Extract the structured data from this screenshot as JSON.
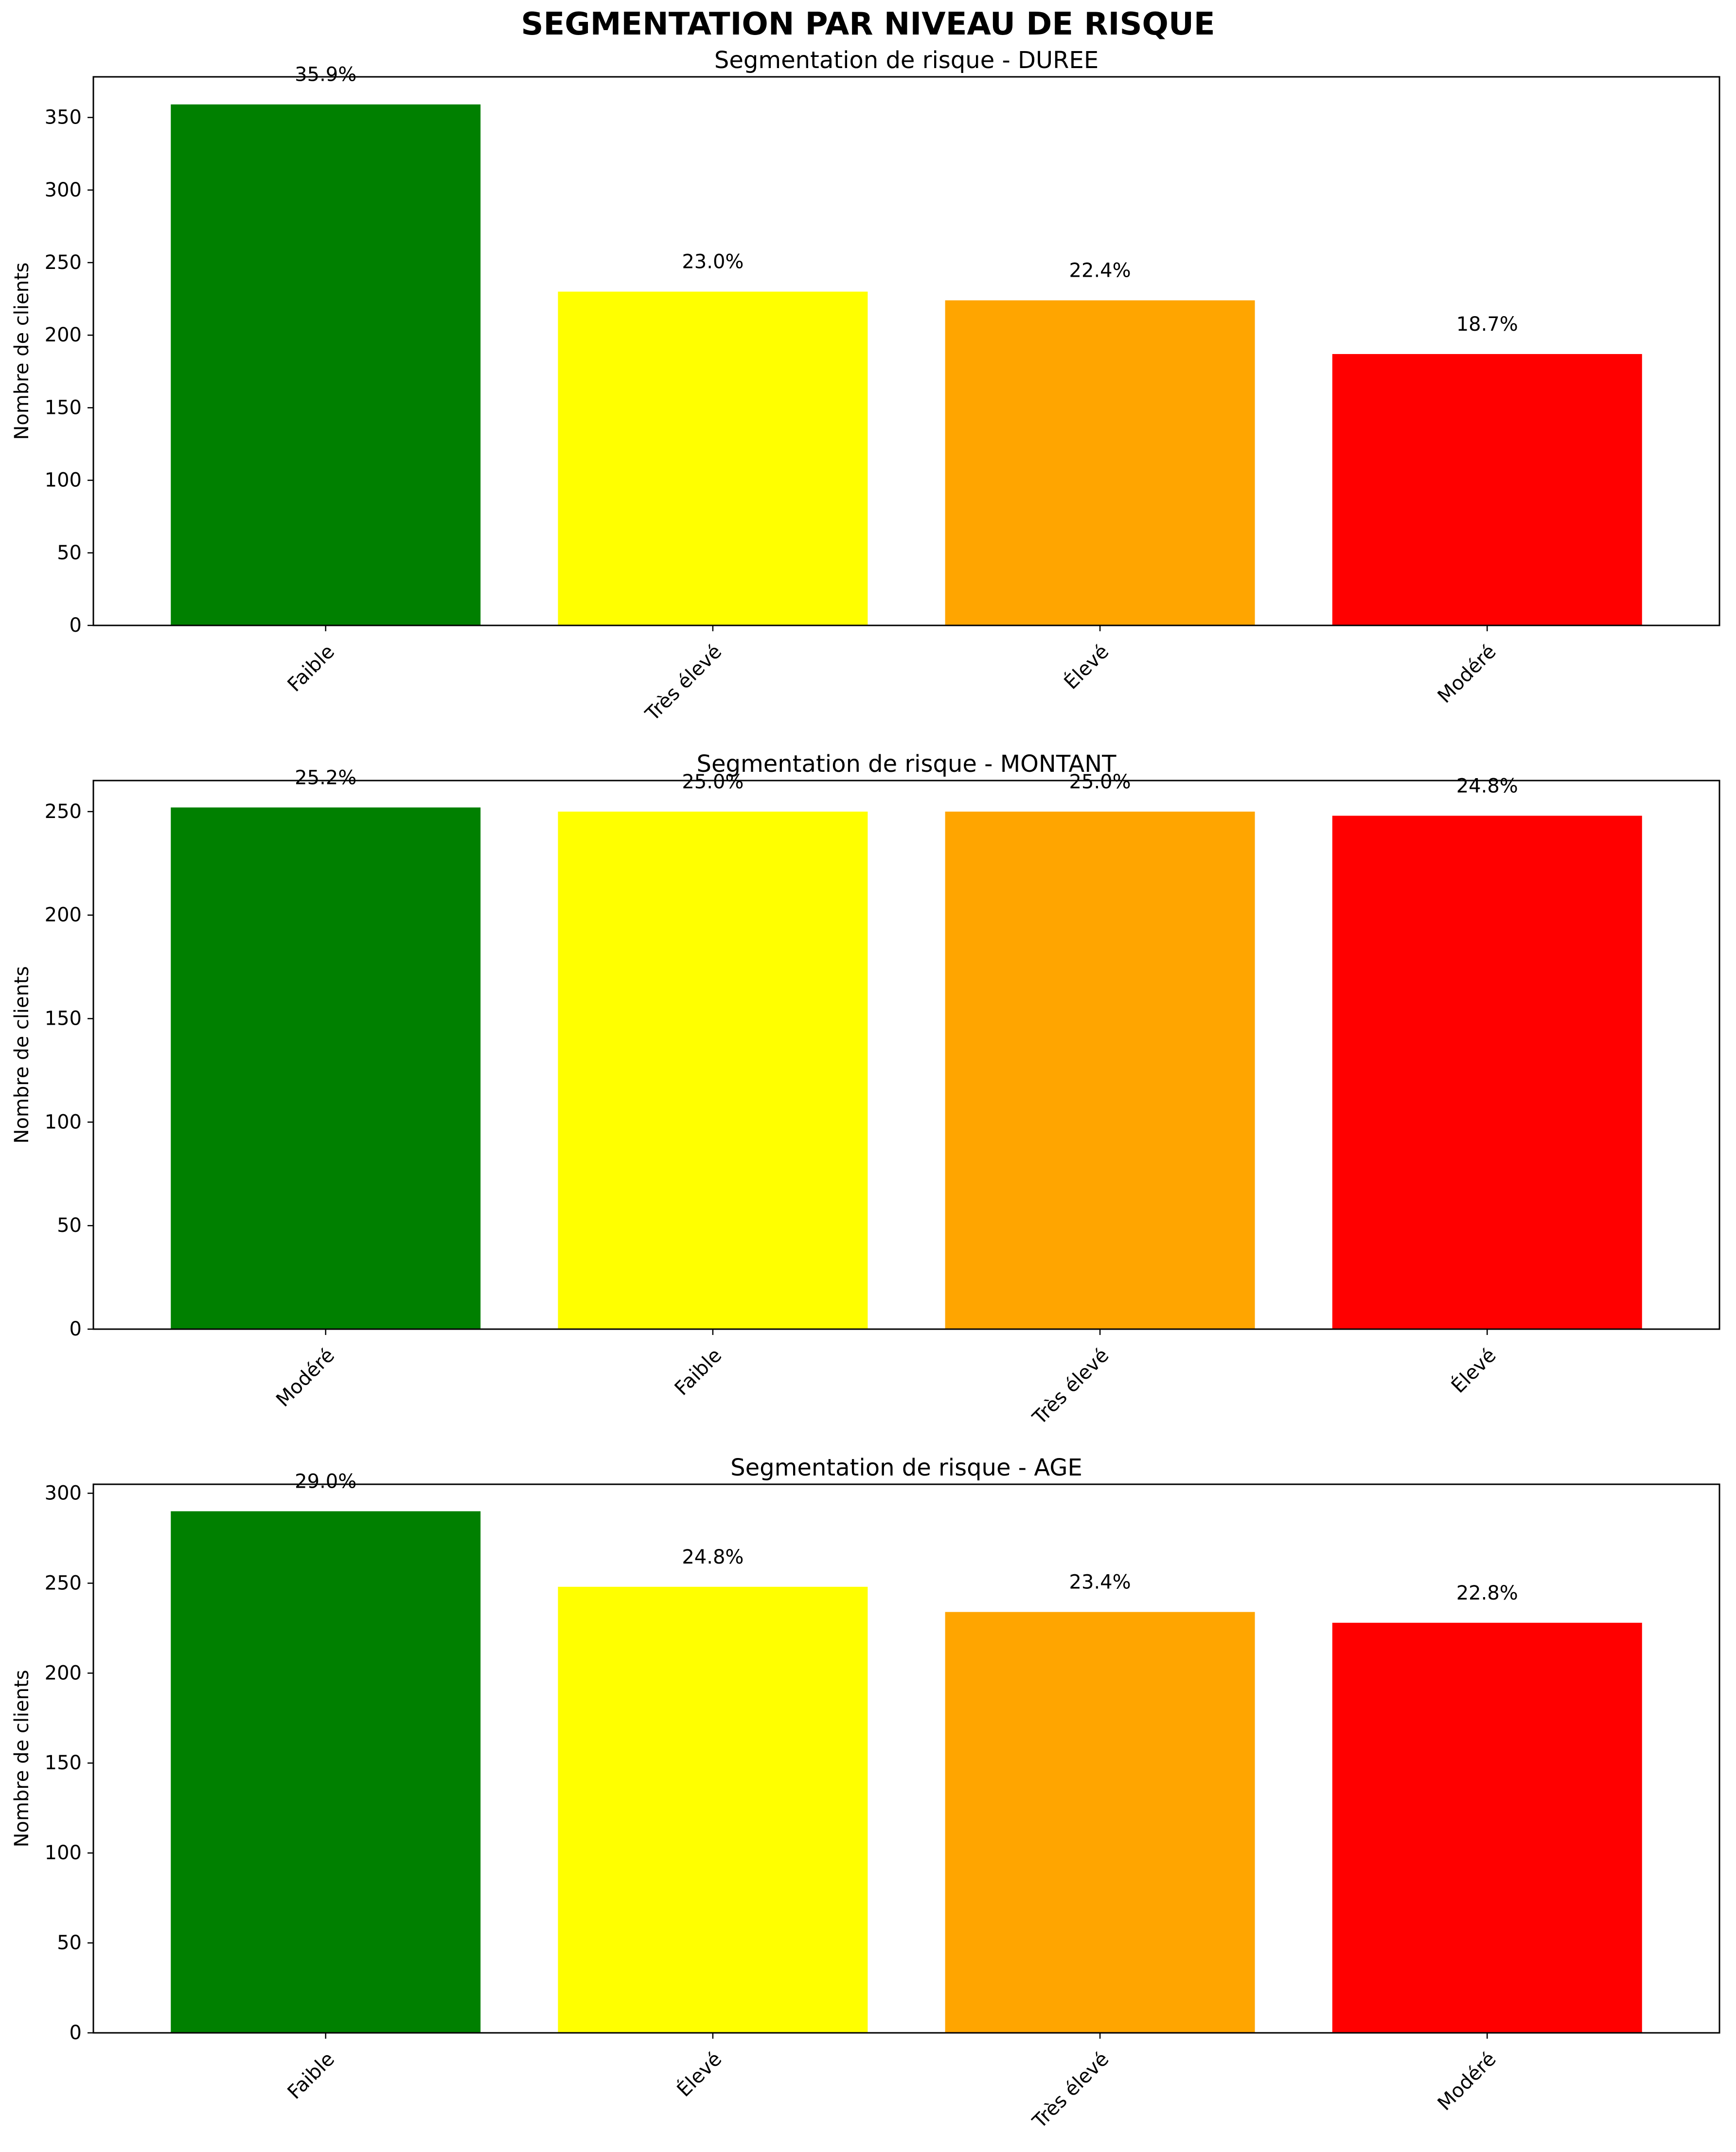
{
  "figure": {
    "title": "SEGMENTATION PAR NIVEAU DE RISQUE"
  },
  "chart_data": [
    {
      "type": "bar",
      "title": "Segmentation de risque - DUREE",
      "xlabel": "",
      "ylabel": "Nombre de clients",
      "categories": [
        "Faible",
        "Très élevé",
        "Élevé",
        "Modéré"
      ],
      "values": [
        359,
        230,
        224,
        187
      ],
      "labels": [
        "35.9%",
        "23.0%",
        "22.4%",
        "18.7%"
      ],
      "colors": [
        "#008000",
        "#ffff00",
        "#ffa500",
        "#ff0000"
      ],
      "ylim": [
        0,
        378
      ],
      "yticks": [
        0,
        50,
        100,
        150,
        200,
        250,
        300,
        350
      ],
      "grid": false
    },
    {
      "type": "bar",
      "title": "Segmentation de risque - MONTANT",
      "xlabel": "",
      "ylabel": "Nombre de clients",
      "categories": [
        "Modéré",
        "Faible",
        "Très élevé",
        "Élevé"
      ],
      "values": [
        252,
        250,
        250,
        248
      ],
      "labels": [
        "25.2%",
        "25.0%",
        "25.0%",
        "24.8%"
      ],
      "colors": [
        "#008000",
        "#ffff00",
        "#ffa500",
        "#ff0000"
      ],
      "ylim": [
        0,
        265
      ],
      "yticks": [
        0,
        50,
        100,
        150,
        200,
        250
      ],
      "grid": false
    },
    {
      "type": "bar",
      "title": "Segmentation de risque - AGE",
      "xlabel": "",
      "ylabel": "Nombre de clients",
      "categories": [
        "Faible",
        "Élevé",
        "Très élevé",
        "Modéré"
      ],
      "values": [
        290,
        248,
        234,
        228
      ],
      "labels": [
        "29.0%",
        "24.8%",
        "23.4%",
        "22.8%"
      ],
      "colors": [
        "#008000",
        "#ffff00",
        "#ffa500",
        "#ff0000"
      ],
      "ylim": [
        0,
        305
      ],
      "yticks": [
        0,
        50,
        100,
        150,
        200,
        250,
        300
      ],
      "grid": false
    }
  ]
}
